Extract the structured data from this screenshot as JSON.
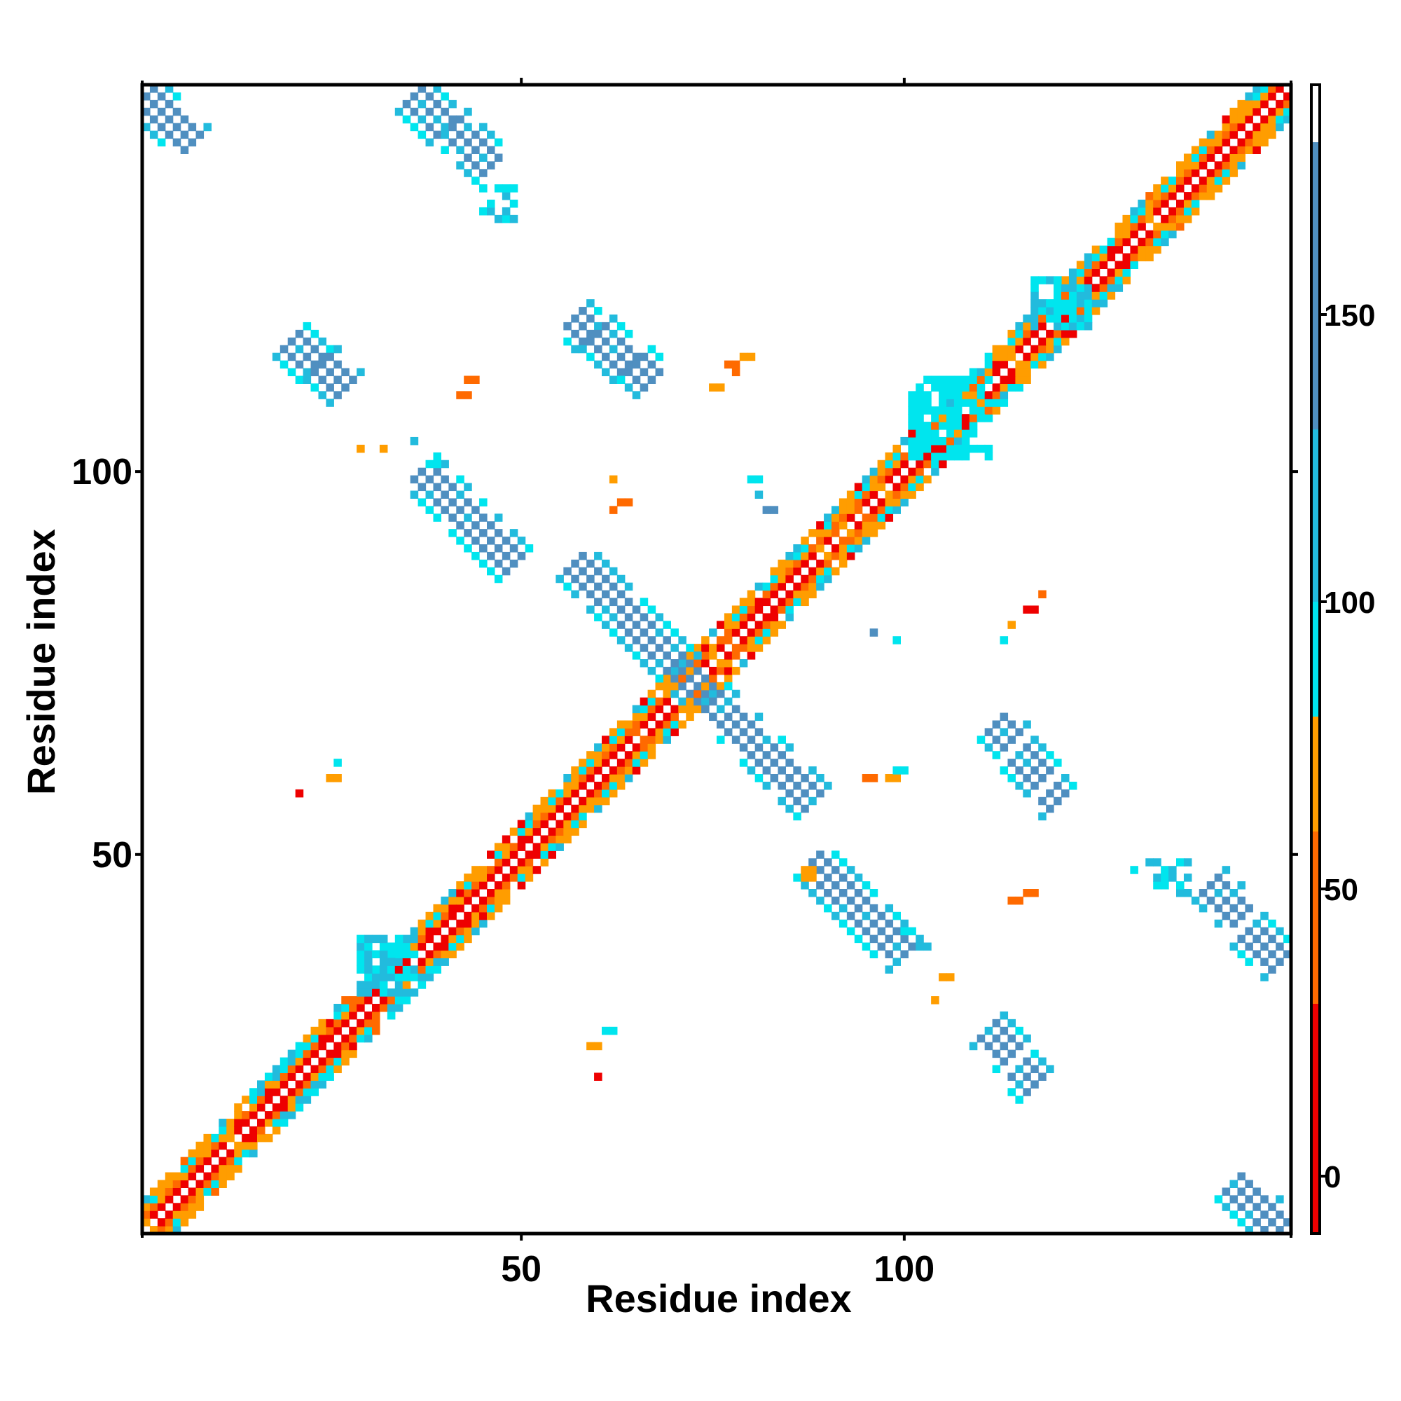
{
  "chart_data": {
    "type": "heatmap",
    "title": "",
    "xlabel": "Residue index",
    "ylabel": "Residue index",
    "xlim": [
      1,
      150
    ],
    "ylim": [
      1,
      150
    ],
    "x_ticks": [
      {
        "value": 50,
        "label": "50"
      },
      {
        "value": 100,
        "label": "100"
      }
    ],
    "y_ticks": [
      {
        "value": 50,
        "label": "50"
      },
      {
        "value": 100,
        "label": "100"
      }
    ],
    "grid": false,
    "colorbar": {
      "range": [
        -10,
        190
      ],
      "ticks": [
        {
          "value": 0,
          "label": "0"
        },
        {
          "value": 50,
          "label": "50"
        },
        {
          "value": 100,
          "label": "100"
        },
        {
          "value": 150,
          "label": "150"
        }
      ],
      "bands": [
        {
          "from": -10,
          "to": 30,
          "color": "#ee0000"
        },
        {
          "from": 30,
          "to": 60,
          "color": "#ff6a00"
        },
        {
          "from": 60,
          "to": 80,
          "color": "#ff9d00"
        },
        {
          "from": 80,
          "to": 100,
          "color": "#00e5ee"
        },
        {
          "from": 100,
          "to": 130,
          "color": "#22bbdd"
        },
        {
          "from": 130,
          "to": 180,
          "color": "#4f8fc0"
        },
        {
          "from": 180,
          "to": 190,
          "color": "#ffffff"
        }
      ]
    },
    "colors": {
      "red": "#ee0000",
      "orange_red": "#ff6a00",
      "orange": "#ff9d00",
      "cyan": "#00e5ee",
      "sky": "#22bbdd",
      "steel": "#4f8fc0"
    },
    "regions": [
      {
        "kind": "diagonal",
        "from": 1,
        "to": 150,
        "description": "main diagonal band, mixed red/orange/cyan"
      },
      {
        "kind": "antidiagonal_band",
        "x": [
          57,
          88
        ],
        "y": [
          88,
          57
        ],
        "color": "steel"
      },
      {
        "kind": "antidiagonal_band",
        "x": [
          37,
          49
        ],
        "y": [
          100,
          88
        ],
        "color": "steel"
      },
      {
        "kind": "antidiagonal_band",
        "x": [
          88,
          100
        ],
        "y": [
          49,
          37
        ],
        "color": "steel"
      },
      {
        "kind": "antidiagonal_band",
        "x": [
          57,
          67
        ],
        "y": [
          120,
          112
        ],
        "color": "steel"
      },
      {
        "kind": "antidiagonal_band",
        "x": [
          112,
          120
        ],
        "y": [
          67,
          57
        ],
        "color": "steel"
      },
      {
        "kind": "antidiagonal_band",
        "x": [
          20,
          27
        ],
        "y": [
          117,
          111
        ],
        "color": "steel"
      },
      {
        "kind": "antidiagonal_band",
        "x": [
          111,
          117
        ],
        "y": [
          27,
          20
        ],
        "color": "steel"
      },
      {
        "kind": "antidiagonal_band",
        "x": [
          36,
          46
        ],
        "y": [
          149,
          140
        ],
        "color": "steel"
      },
      {
        "kind": "antidiagonal_band",
        "x": [
          140,
          149
        ],
        "y": [
          46,
          36
        ],
        "color": "steel"
      },
      {
        "kind": "antidiagonal_band",
        "x": [
          1,
          7
        ],
        "y": [
          149,
          143
        ],
        "color": "steel"
      },
      {
        "kind": "antidiagonal_band",
        "x": [
          143,
          149
        ],
        "y": [
          7,
          1
        ],
        "color": "steel"
      },
      {
        "kind": "patch",
        "x": [
          45,
          49
        ],
        "y": [
          137,
          133
        ],
        "color": "sky"
      },
      {
        "kind": "patch",
        "x": [
          133,
          137
        ],
        "y": [
          49,
          45
        ],
        "color": "sky"
      },
      {
        "kind": "patch",
        "x": [
          117,
          124
        ],
        "y": [
          125,
          119
        ],
        "color": "sky"
      },
      {
        "kind": "patch",
        "x": [
          101,
          111
        ],
        "y": [
          112,
          102
        ],
        "color": "cyan"
      },
      {
        "kind": "patch",
        "x": [
          29,
          36
        ],
        "y": [
          39,
          32
        ],
        "color": "sky"
      }
    ]
  }
}
